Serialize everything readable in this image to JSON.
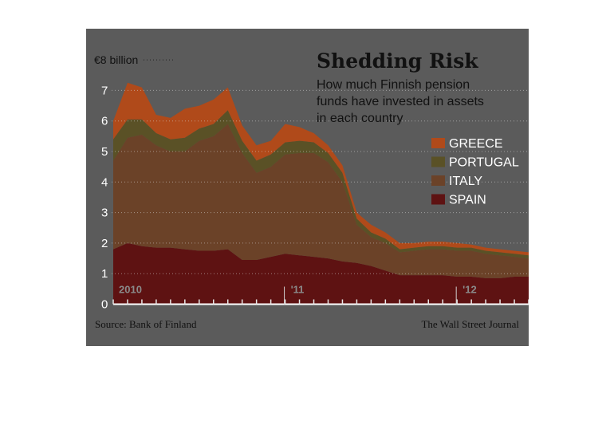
{
  "chart_data": {
    "type": "area",
    "stacked": true,
    "title": "Shedding Risk",
    "subtitle": [
      "How much Finnish pension",
      "funds have invested in assets",
      "in each country"
    ],
    "unit_label": "€8 billion",
    "ylim": [
      0,
      8
    ],
    "y_ticks": [
      "0",
      "1",
      "2",
      "3",
      "4",
      "5",
      "6",
      "7"
    ],
    "x": [
      "2010-01",
      "2010-02",
      "2010-03",
      "2010-04",
      "2010-05",
      "2010-06",
      "2010-07",
      "2010-08",
      "2010-09",
      "2010-10",
      "2010-11",
      "2010-12",
      "2011-01",
      "2011-02",
      "2011-03",
      "2011-04",
      "2011-05",
      "2011-06",
      "2011-07",
      "2011-08",
      "2011-09",
      "2011-10",
      "2011-11",
      "2011-12",
      "2012-01",
      "2012-02",
      "2012-03",
      "2012-04",
      "2012-05",
      "2012-06"
    ],
    "x_labels": [
      "2010",
      "'11",
      "'12"
    ],
    "legend_position": "top-right",
    "series": [
      {
        "name": "SPAIN",
        "color": "#5e1212",
        "values": [
          1.8,
          2.0,
          1.9,
          1.85,
          1.85,
          1.8,
          1.75,
          1.75,
          1.8,
          1.45,
          1.45,
          1.55,
          1.65,
          1.6,
          1.55,
          1.5,
          1.4,
          1.35,
          1.25,
          1.1,
          0.95,
          0.95,
          0.95,
          0.95,
          0.9,
          0.9,
          0.85,
          0.85,
          0.9,
          0.9
        ]
      },
      {
        "name": "ITALY",
        "color": "#6b4228",
        "values": [
          2.9,
          3.45,
          3.65,
          3.35,
          3.15,
          3.2,
          3.6,
          3.75,
          4.1,
          3.5,
          2.85,
          2.95,
          3.25,
          3.35,
          3.4,
          3.15,
          2.6,
          1.25,
          0.95,
          0.9,
          0.75,
          0.8,
          0.85,
          0.85,
          0.85,
          0.85,
          0.8,
          0.75,
          0.65,
          0.6
        ]
      },
      {
        "name": "PORTUGAL",
        "color": "#5a5126",
        "values": [
          0.7,
          0.6,
          0.5,
          0.4,
          0.4,
          0.45,
          0.4,
          0.4,
          0.45,
          0.4,
          0.4,
          0.4,
          0.4,
          0.4,
          0.35,
          0.3,
          0.3,
          0.2,
          0.15,
          0.15,
          0.1,
          0.1,
          0.1,
          0.1,
          0.1,
          0.1,
          0.1,
          0.1,
          0.1,
          0.1
        ]
      },
      {
        "name": "GREECE",
        "color": "#b04a1a",
        "values": [
          0.6,
          1.2,
          1.05,
          0.6,
          0.7,
          0.95,
          0.75,
          0.8,
          0.75,
          0.5,
          0.5,
          0.45,
          0.6,
          0.45,
          0.3,
          0.25,
          0.25,
          0.2,
          0.25,
          0.2,
          0.2,
          0.15,
          0.15,
          0.15,
          0.15,
          0.1,
          0.1,
          0.1,
          0.1,
          0.1
        ]
      }
    ],
    "grid": "dotted horizontal"
  },
  "footer": {
    "source": "Source: Bank of Finland",
    "publisher": "The Wall Street Journal"
  }
}
